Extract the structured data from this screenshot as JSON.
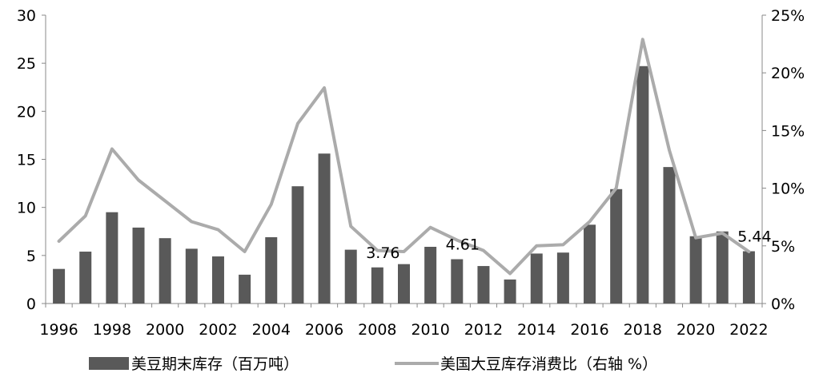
{
  "chart_data": {
    "type": "bar+line",
    "x": [
      "1996",
      "1997",
      "1998",
      "1999",
      "2000",
      "2001",
      "2002",
      "2003",
      "2004",
      "2005",
      "2006",
      "2007",
      "2008",
      "2009",
      "2010",
      "2011",
      "2012",
      "2013",
      "2014",
      "2015",
      "2016",
      "2017",
      "2018",
      "2019",
      "2020",
      "2021",
      "2022"
    ],
    "x_tick_labels": [
      "1996",
      "1998",
      "2000",
      "2002",
      "2004",
      "2006",
      "2008",
      "2010",
      "2012",
      "2014",
      "2016",
      "2018",
      "2020",
      "2022"
    ],
    "series": [
      {
        "name": "美豆期末库存（百万吨）",
        "type": "bar",
        "axis": "left",
        "color": "#595959",
        "values": [
          3.6,
          5.4,
          9.5,
          7.9,
          6.8,
          5.7,
          4.9,
          3.0,
          6.9,
          12.2,
          15.6,
          5.6,
          3.76,
          4.1,
          5.9,
          4.61,
          3.9,
          2.5,
          5.2,
          5.3,
          8.2,
          11.9,
          24.7,
          14.2,
          7.0,
          7.5,
          5.44
        ]
      },
      {
        "name": "美国大豆库存消费比（右轴 %）",
        "type": "line",
        "axis": "right",
        "color": "#ababab",
        "values": [
          5.4,
          7.6,
          13.4,
          10.7,
          8.9,
          7.1,
          6.4,
          4.5,
          8.6,
          15.6,
          18.7,
          6.7,
          4.6,
          4.5,
          6.6,
          5.5,
          4.6,
          2.6,
          5.0,
          5.1,
          7.1,
          10.0,
          22.9,
          13.3,
          5.7,
          6.1,
          4.5
        ]
      }
    ],
    "data_labels": [
      {
        "x": "2008",
        "text": "3.76"
      },
      {
        "x": "2011",
        "text": "4.61"
      },
      {
        "x": "2022",
        "text": "5.44"
      }
    ],
    "y_left": {
      "ylim": [
        0,
        30
      ],
      "ticks": [
        "0",
        "5",
        "10",
        "15",
        "20",
        "25",
        "30"
      ]
    },
    "y_right": {
      "ylim": [
        0,
        25
      ],
      "ticks": [
        "0%",
        "5%",
        "10%",
        "15%",
        "20%",
        "25%"
      ]
    },
    "grid": false,
    "legend_position": "bottom",
    "legend": [
      {
        "label": "美豆期末库存（百万吨）",
        "swatch": "bar"
      },
      {
        "label": "美国大豆库存消费比（右轴 %）",
        "swatch": "line"
      }
    ]
  }
}
